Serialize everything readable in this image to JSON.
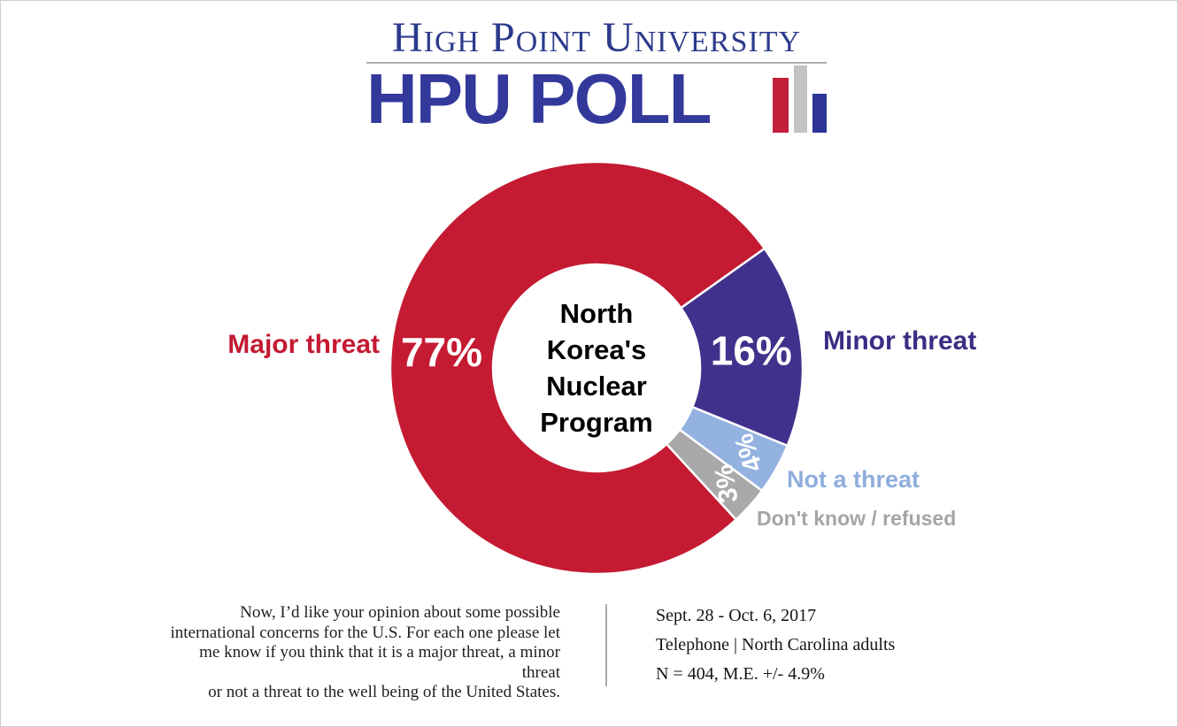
{
  "page": {
    "background": "#ffffff",
    "border_color": "#cfcfcf"
  },
  "logo": {
    "university_text": "High Point University",
    "poll_text": "HPU POLL",
    "text_color": "#2C3A8C",
    "poll_color": "#33389B",
    "underline_color": "#ADADAD",
    "bars": [
      {
        "name": "bar-red",
        "color": "#C2203A"
      },
      {
        "name": "bar-gray",
        "color": "#C2C2C2"
      },
      {
        "name": "bar-navy",
        "color": "#2E3596"
      }
    ]
  },
  "chart_data": {
    "type": "pie",
    "subtype": "donut",
    "center_label_lines": [
      "North",
      "Korea's",
      "Nuclear",
      "Program"
    ],
    "categories": [
      "Major threat",
      "Minor threat",
      "Not a threat",
      "Don't know / refused"
    ],
    "values": [
      77,
      16,
      4,
      3
    ],
    "unit": "%",
    "slice_colors": [
      "#C41A32",
      "#42318C",
      "#94B2E0",
      "#A9A9A9"
    ],
    "label_colors": [
      "#C41A32",
      "#3A2D84",
      "#8FAEDC",
      "#A5A5A5"
    ],
    "value_label_color": "#FFFFFF",
    "start_angle_deg": 137.4,
    "direction": "clockwise",
    "inner_radius_ratio": 0.5,
    "separator_color": "#FFFFFF",
    "legend_position": "labels-beside-slices"
  },
  "footer": {
    "question_lines": [
      "Now, I’d like your opinion about some possible",
      "international concerns for the U.S. For each one please let",
      "me know if you think that it is a major threat, a minor threat",
      "or not a threat to the well being of the United States."
    ],
    "survey_dates": "Sept. 28 - Oct. 6, 2017",
    "survey_mode": "Telephone | North Carolina adults",
    "survey_sample": "N = 404, M.E. +/- 4.9%"
  }
}
